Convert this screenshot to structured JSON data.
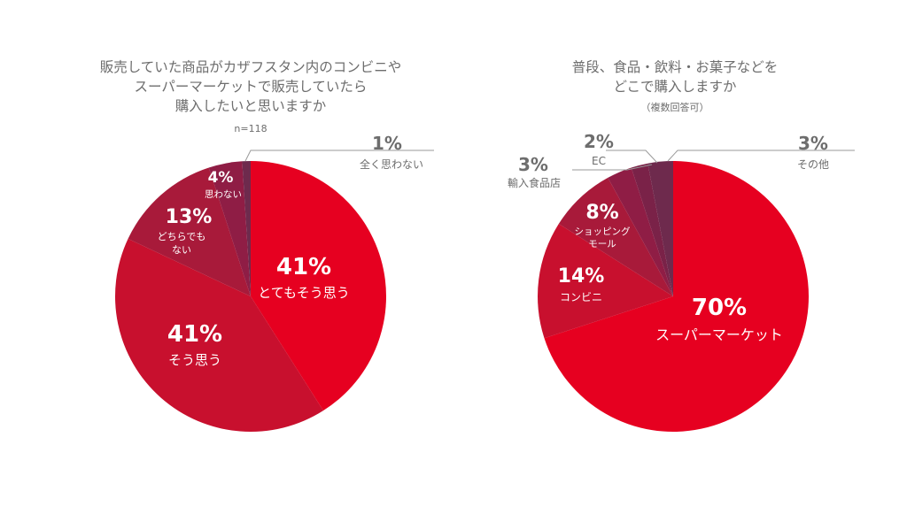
{
  "chart_data": [
    {
      "type": "pie",
      "title_lines": [
        "販売していた商品がカザフスタン内のコンビニや",
        "スーパーマーケットで販売していたら",
        "購入したいと思いますか"
      ],
      "subtitle": "n=118",
      "slices": [
        {
          "label": "とてもそう思う",
          "pct_text": "41%",
          "value": 41,
          "color": "#e60020"
        },
        {
          "label": "そう思う",
          "pct_text": "41%",
          "value": 41,
          "color": "#c8102e"
        },
        {
          "label": "どちらでもない",
          "label_lines": [
            "どちらでも",
            "ない"
          ],
          "pct_text": "13%",
          "value": 13,
          "color": "#a81a3a"
        },
        {
          "label": "思わない",
          "pct_text": "4%",
          "value": 4,
          "color": "#8f1d45"
        },
        {
          "label": "全く思わない",
          "pct_text": "1%",
          "value": 1,
          "color": "#6e2a4d"
        }
      ]
    },
    {
      "type": "pie",
      "title_lines": [
        "普段、食品・飲料・お菓子などを",
        "どこで購入しますか"
      ],
      "subtitle": "（複数回答可）",
      "slices": [
        {
          "label": "スーパーマーケット",
          "pct_text": "70%",
          "value": 70,
          "color": "#e60020"
        },
        {
          "label": "コンビニ",
          "pct_text": "14%",
          "value": 14,
          "color": "#c8102e"
        },
        {
          "label": "ショッピングモール",
          "label_lines": [
            "ショッピング",
            "モール"
          ],
          "pct_text": "8%",
          "value": 8,
          "color": "#a81a3a"
        },
        {
          "label": "輸入食品店",
          "pct_text": "3%",
          "value": 3,
          "color": "#8f1d45"
        },
        {
          "label": "EC",
          "pct_text": "2%",
          "value": 2,
          "color": "#7a2248"
        },
        {
          "label": "その他",
          "pct_text": "3%",
          "value": 3,
          "color": "#6e2a4d"
        }
      ]
    }
  ]
}
